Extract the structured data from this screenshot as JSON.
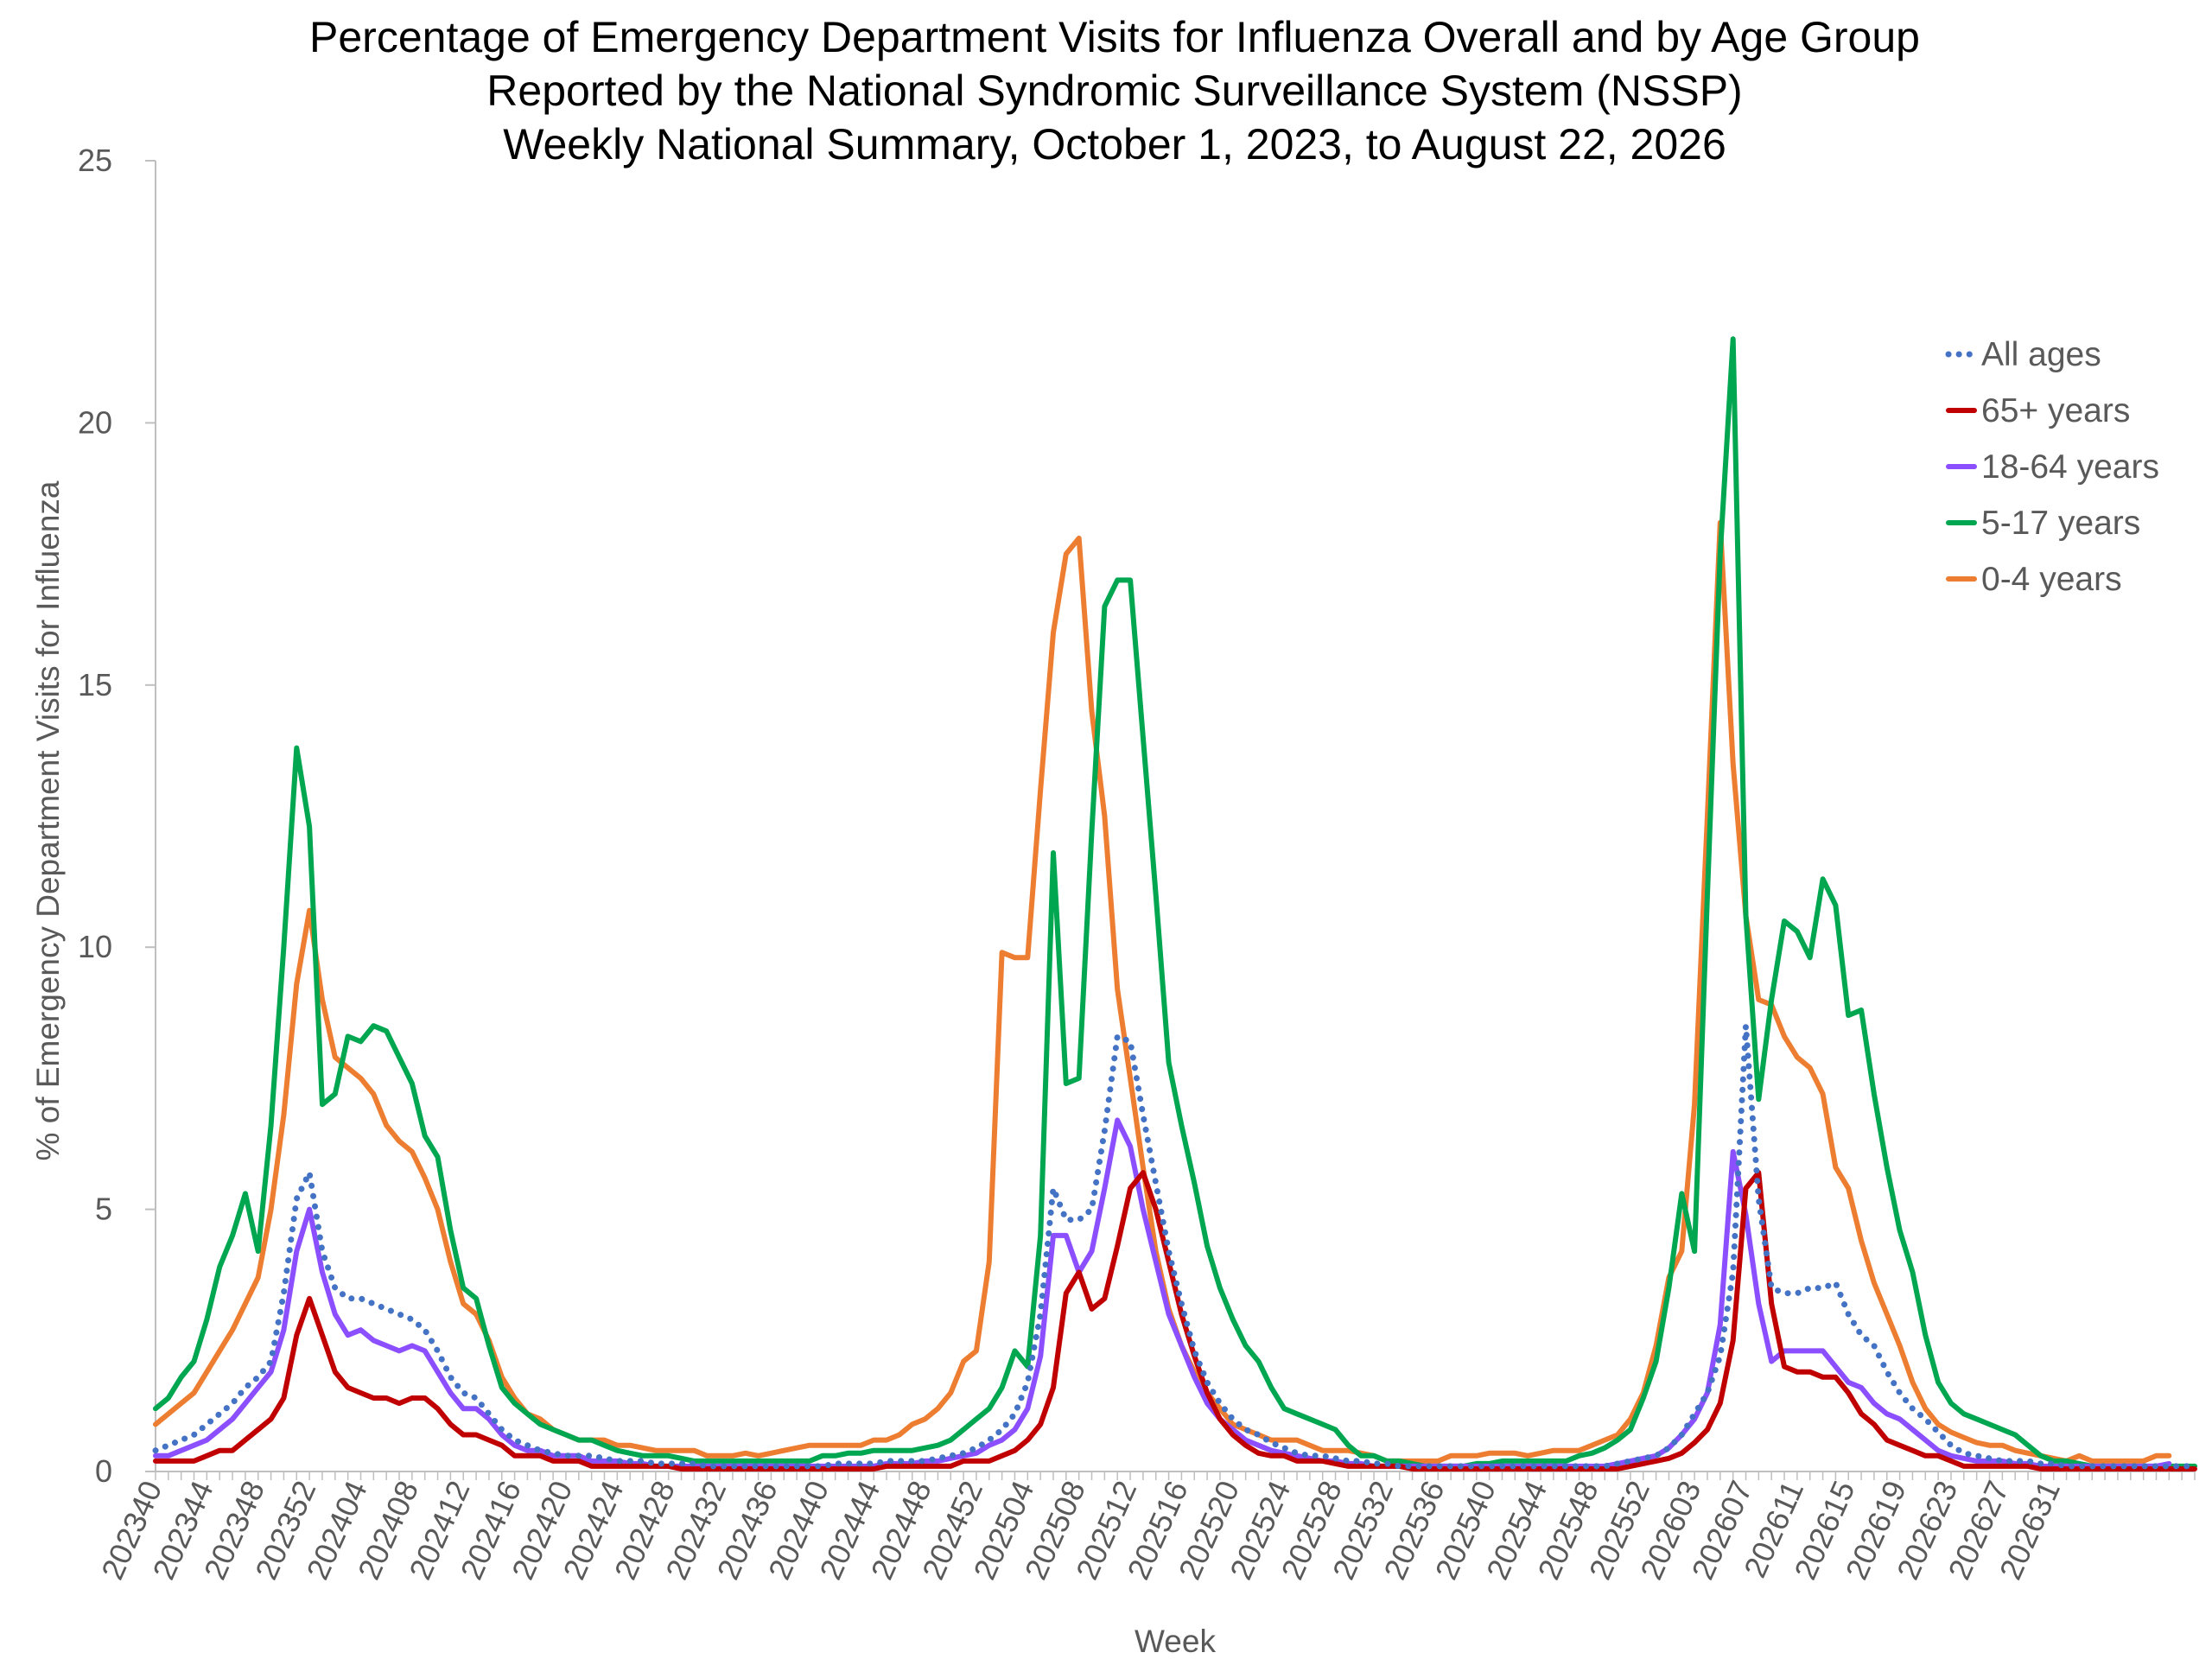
{
  "chart_data": {
    "type": "line",
    "title": [
      "Percentage of Emergency Department Visits for Influenza Overall and by Age Group",
      "Reported by the National Syndromic Surveillance System (NSSP)",
      "Weekly National Summary, October 1, 2023, to August 22, 2026"
    ],
    "xlabel": "Week",
    "ylabel": "% of Emergency Department Visits for Influenza",
    "ylim": [
      0,
      25
    ],
    "yticks": [
      0,
      5,
      10,
      15,
      20,
      25
    ],
    "xtick_labels": [
      "202340",
      "202344",
      "202348",
      "202352",
      "202404",
      "202408",
      "202412",
      "202416",
      "202420",
      "202424",
      "202428",
      "202432",
      "202436",
      "202440",
      "202444",
      "202448",
      "202452",
      "202504",
      "202508",
      "202512",
      "202516",
      "202520",
      "202524",
      "202528",
      "202532",
      "202536",
      "202540",
      "202544",
      "202548",
      "202552",
      "202603",
      "202607",
      "202611",
      "202615",
      "202619",
      "202623",
      "202627",
      "202631"
    ],
    "grid": false,
    "legend_position": "top-right",
    "series": [
      {
        "name": "All ages",
        "color": "#4472C4",
        "style": "dotted",
        "values": [
          0.4,
          0.5,
          0.6,
          0.7,
          0.9,
          1.1,
          1.3,
          1.6,
          1.8,
          2.1,
          3.4,
          5.2,
          5.7,
          4.2,
          3.5,
          3.3,
          3.3,
          3.2,
          3.1,
          3.0,
          2.9,
          2.7,
          2.3,
          1.8,
          1.5,
          1.4,
          1.1,
          0.8,
          0.6,
          0.5,
          0.4,
          0.35,
          0.3,
          0.3,
          0.3,
          0.25,
          0.2,
          0.2,
          0.2,
          0.15,
          0.15,
          0.15,
          0.15,
          0.1,
          0.1,
          0.1,
          0.1,
          0.1,
          0.1,
          0.1,
          0.1,
          0.1,
          0.1,
          0.15,
          0.15,
          0.15,
          0.15,
          0.2,
          0.2,
          0.2,
          0.2,
          0.25,
          0.3,
          0.35,
          0.45,
          0.6,
          0.8,
          1.1,
          1.7,
          3.0,
          5.4,
          4.8,
          4.8,
          5.0,
          6.5,
          8.3,
          8.2,
          6.8,
          5.5,
          4.2,
          3.2,
          2.3,
          1.7,
          1.3,
          1.0,
          0.8,
          0.7,
          0.55,
          0.45,
          0.35,
          0.3,
          0.3,
          0.25,
          0.2,
          0.2,
          0.15,
          0.15,
          0.1,
          0.1,
          0.1,
          0.1,
          0.1,
          0.1,
          0.1,
          0.1,
          0.1,
          0.1,
          0.1,
          0.1,
          0.1,
          0.1,
          0.1,
          0.1,
          0.1,
          0.15,
          0.2,
          0.25,
          0.3,
          0.45,
          0.7,
          1.1,
          1.5,
          2.2,
          3.8,
          8.5,
          5.2,
          3.5,
          3.4,
          3.4,
          3.5,
          3.5,
          3.6,
          3.0,
          2.6,
          2.4,
          1.9,
          1.5,
          1.2,
          1.0,
          0.75,
          0.5,
          0.35,
          0.3,
          0.25,
          0.2,
          0.2,
          0.2,
          0.15,
          0.15,
          0.1,
          0.1,
          0.1,
          0.1,
          0.1,
          0.1,
          0.1,
          0.1,
          0.1,
          0.1,
          0.1
        ]
      },
      {
        "name": "65+ years",
        "color": "#C00000",
        "style": "solid",
        "values": [
          0.2,
          0.2,
          0.2,
          0.2,
          0.3,
          0.4,
          0.4,
          0.6,
          0.8,
          1.0,
          1.4,
          2.6,
          3.3,
          2.6,
          1.9,
          1.6,
          1.5,
          1.4,
          1.4,
          1.3,
          1.4,
          1.4,
          1.2,
          0.9,
          0.7,
          0.7,
          0.6,
          0.5,
          0.3,
          0.3,
          0.3,
          0.2,
          0.2,
          0.2,
          0.1,
          0.1,
          0.1,
          0.1,
          0.1,
          0.1,
          0.1,
          0.05,
          0.05,
          0.05,
          0.05,
          0.05,
          0.05,
          0.05,
          0.05,
          0.05,
          0.05,
          0.05,
          0.05,
          0.05,
          0.05,
          0.05,
          0.05,
          0.1,
          0.1,
          0.1,
          0.1,
          0.1,
          0.1,
          0.2,
          0.2,
          0.2,
          0.3,
          0.4,
          0.6,
          0.9,
          1.6,
          3.4,
          3.8,
          3.1,
          3.3,
          4.3,
          5.4,
          5.7,
          5.0,
          4.0,
          3.0,
          2.2,
          1.5,
          1.0,
          0.7,
          0.5,
          0.35,
          0.3,
          0.3,
          0.2,
          0.2,
          0.2,
          0.15,
          0.1,
          0.1,
          0.1,
          0.1,
          0.1,
          0.05,
          0.05,
          0.05,
          0.05,
          0.05,
          0.05,
          0.05,
          0.05,
          0.05,
          0.05,
          0.05,
          0.05,
          0.05,
          0.05,
          0.05,
          0.05,
          0.05,
          0.1,
          0.15,
          0.2,
          0.25,
          0.35,
          0.55,
          0.8,
          1.3,
          2.5,
          5.4,
          5.7,
          3.2,
          2.0,
          1.9,
          1.9,
          1.8,
          1.8,
          1.5,
          1.1,
          0.9,
          0.6,
          0.5,
          0.4,
          0.3,
          0.3,
          0.2,
          0.1,
          0.1,
          0.1,
          0.1,
          0.1,
          0.1,
          0.05,
          0.05,
          0.05,
          0.05,
          0.05,
          0.05,
          0.05,
          0.05,
          0.05,
          0.05,
          0.05,
          0.05,
          0.05
        ]
      },
      {
        "name": "18-64 years",
        "color": "#8C4FFF",
        "style": "solid",
        "values": [
          0.3,
          0.3,
          0.4,
          0.5,
          0.6,
          0.8,
          1.0,
          1.3,
          1.6,
          1.9,
          2.7,
          4.2,
          5.0,
          3.8,
          3.0,
          2.6,
          2.7,
          2.5,
          2.4,
          2.3,
          2.4,
          2.3,
          1.9,
          1.5,
          1.2,
          1.2,
          1.0,
          0.7,
          0.5,
          0.4,
          0.4,
          0.3,
          0.3,
          0.3,
          0.2,
          0.2,
          0.2,
          0.15,
          0.15,
          0.1,
          0.1,
          0.1,
          0.1,
          0.1,
          0.1,
          0.1,
          0.1,
          0.1,
          0.1,
          0.1,
          0.1,
          0.1,
          0.1,
          0.1,
          0.1,
          0.1,
          0.1,
          0.15,
          0.15,
          0.15,
          0.2,
          0.2,
          0.25,
          0.3,
          0.35,
          0.5,
          0.6,
          0.8,
          1.2,
          2.2,
          4.5,
          4.5,
          3.8,
          4.2,
          5.4,
          6.7,
          6.2,
          5.0,
          4.0,
          3.0,
          2.4,
          1.8,
          1.3,
          1.0,
          0.8,
          0.6,
          0.5,
          0.4,
          0.35,
          0.3,
          0.25,
          0.2,
          0.2,
          0.15,
          0.15,
          0.1,
          0.1,
          0.1,
          0.1,
          0.1,
          0.1,
          0.1,
          0.1,
          0.1,
          0.1,
          0.1,
          0.1,
          0.1,
          0.1,
          0.1,
          0.1,
          0.1,
          0.1,
          0.1,
          0.15,
          0.2,
          0.25,
          0.3,
          0.45,
          0.7,
          1.0,
          1.5,
          2.8,
          6.1,
          4.9,
          3.2,
          2.1,
          2.3,
          2.3,
          2.3,
          2.3,
          2.0,
          1.7,
          1.6,
          1.3,
          1.1,
          1.0,
          0.8,
          0.6,
          0.4,
          0.3,
          0.25,
          0.2,
          0.2,
          0.2,
          0.15,
          0.15,
          0.1,
          0.1,
          0.1,
          0.1,
          0.1,
          0.1,
          0.1,
          0.1,
          0.1,
          0.1,
          0.15
        ]
      },
      {
        "name": "5-17 years",
        "color": "#00A650",
        "style": "solid",
        "values": [
          1.2,
          1.4,
          1.8,
          2.1,
          2.9,
          3.9,
          4.5,
          5.3,
          4.2,
          6.6,
          10.0,
          13.8,
          12.3,
          7.0,
          7.2,
          8.3,
          8.2,
          8.5,
          8.4,
          7.9,
          7.4,
          6.4,
          6.0,
          4.6,
          3.5,
          3.3,
          2.4,
          1.6,
          1.3,
          1.1,
          0.9,
          0.8,
          0.7,
          0.6,
          0.6,
          0.5,
          0.4,
          0.35,
          0.3,
          0.3,
          0.3,
          0.25,
          0.2,
          0.2,
          0.2,
          0.2,
          0.2,
          0.2,
          0.2,
          0.2,
          0.2,
          0.2,
          0.3,
          0.3,
          0.35,
          0.35,
          0.4,
          0.4,
          0.4,
          0.4,
          0.45,
          0.5,
          0.6,
          0.8,
          1.0,
          1.2,
          1.6,
          2.3,
          2.0,
          4.5,
          11.8,
          7.4,
          7.5,
          12.2,
          16.5,
          17.0,
          17.0,
          14.0,
          11.0,
          7.8,
          6.6,
          5.5,
          4.3,
          3.5,
          2.9,
          2.4,
          2.1,
          1.6,
          1.2,
          1.1,
          1.0,
          0.9,
          0.8,
          0.5,
          0.3,
          0.3,
          0.2,
          0.2,
          0.15,
          0.1,
          0.1,
          0.1,
          0.1,
          0.15,
          0.15,
          0.2,
          0.2,
          0.2,
          0.2,
          0.2,
          0.2,
          0.3,
          0.35,
          0.45,
          0.6,
          0.8,
          1.4,
          2.1,
          3.5,
          5.3,
          4.2,
          11.0,
          17.5,
          21.6,
          10.6,
          7.1,
          9.0,
          10.5,
          10.3,
          9.8,
          11.3,
          10.8,
          8.7,
          8.8,
          7.2,
          5.8,
          4.6,
          3.8,
          2.6,
          1.7,
          1.3,
          1.1,
          1.0,
          0.9,
          0.8,
          0.7,
          0.5,
          0.3,
          0.2,
          0.2,
          0.15,
          0.1,
          0.1,
          0.1,
          0.1,
          0.1,
          0.1,
          0.1,
          0.1,
          0.1
        ]
      },
      {
        "name": "0-4 years",
        "color": "#ED7D31",
        "style": "solid",
        "values": [
          0.9,
          1.1,
          1.3,
          1.5,
          1.9,
          2.3,
          2.7,
          3.2,
          3.7,
          5.0,
          6.8,
          9.3,
          10.7,
          9.0,
          7.9,
          7.7,
          7.5,
          7.2,
          6.6,
          6.3,
          6.1,
          5.6,
          5.0,
          4.0,
          3.2,
          3.0,
          2.5,
          1.8,
          1.4,
          1.1,
          1.0,
          0.8,
          0.7,
          0.6,
          0.6,
          0.6,
          0.5,
          0.5,
          0.45,
          0.4,
          0.4,
          0.4,
          0.4,
          0.3,
          0.3,
          0.3,
          0.35,
          0.3,
          0.35,
          0.4,
          0.45,
          0.5,
          0.5,
          0.5,
          0.5,
          0.5,
          0.6,
          0.6,
          0.7,
          0.9,
          1.0,
          1.2,
          1.5,
          2.1,
          2.3,
          4.0,
          9.9,
          9.8,
          9.8,
          13.0,
          16.0,
          17.5,
          17.8,
          14.5,
          12.5,
          9.2,
          7.5,
          5.8,
          4.2,
          3.1,
          2.4,
          1.9,
          1.5,
          1.2,
          0.9,
          0.8,
          0.7,
          0.6,
          0.6,
          0.6,
          0.5,
          0.4,
          0.4,
          0.4,
          0.35,
          0.3,
          0.2,
          0.2,
          0.2,
          0.2,
          0.2,
          0.3,
          0.3,
          0.3,
          0.35,
          0.35,
          0.35,
          0.3,
          0.35,
          0.4,
          0.4,
          0.4,
          0.5,
          0.6,
          0.7,
          1.0,
          1.5,
          2.4,
          3.7,
          4.2,
          7.0,
          12.5,
          18.1,
          13.5,
          10.6,
          9.0,
          8.9,
          8.3,
          7.9,
          7.7,
          7.2,
          5.8,
          5.4,
          4.4,
          3.6,
          3.0,
          2.4,
          1.7,
          1.2,
          0.9,
          0.75,
          0.65,
          0.55,
          0.5,
          0.5,
          0.4,
          0.35,
          0.3,
          0.25,
          0.2,
          0.3,
          0.2,
          0.2,
          0.2,
          0.2,
          0.2,
          0.3,
          0.3
        ]
      }
    ]
  }
}
